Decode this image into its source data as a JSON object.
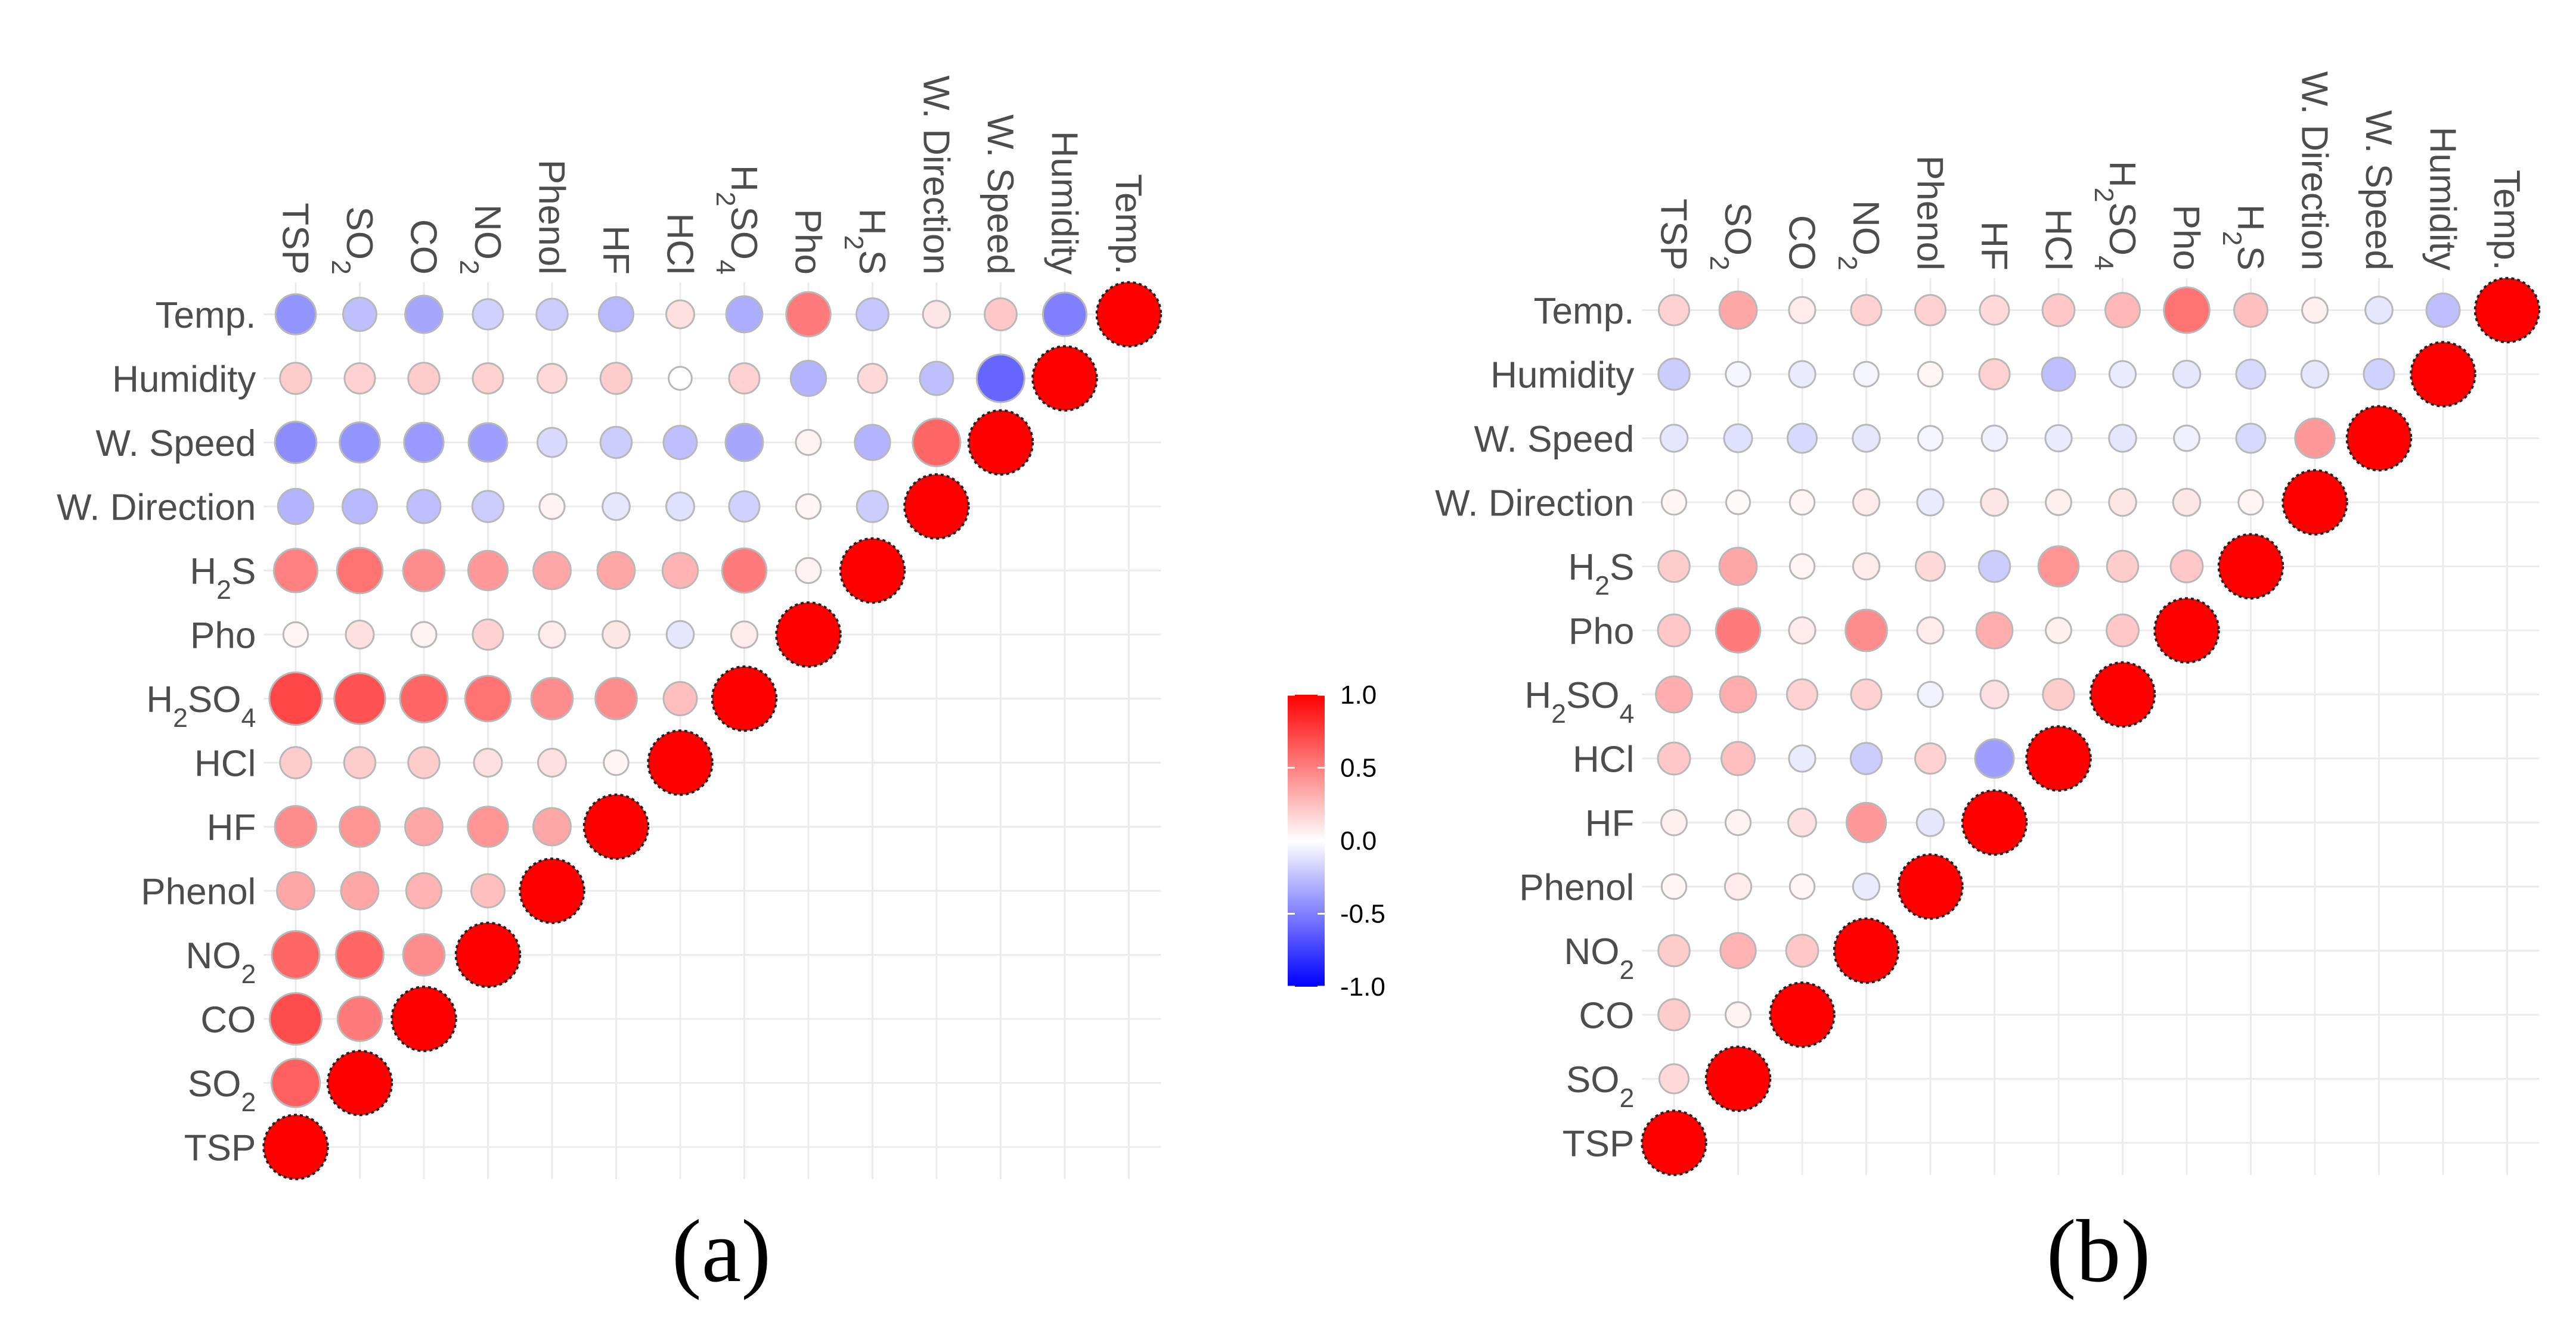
{
  "chart_data": [
    {
      "type": "correlogram",
      "panel_label": "(a)",
      "variables": [
        "TSP",
        "SO2",
        "CO",
        "NO2",
        "Phenol",
        "HF",
        "HCl",
        "H2SO4",
        "Pho",
        "H2S",
        "W. Direction",
        "W. Speed",
        "Humidity",
        "Temp."
      ],
      "variable_labels": [
        {
          "base": "TSP",
          "sub": ""
        },
        {
          "base": "SO",
          "sub": "2"
        },
        {
          "base": "CO",
          "sub": ""
        },
        {
          "base": "NO",
          "sub": "2"
        },
        {
          "base": "Phenol",
          "sub": ""
        },
        {
          "base": "HF",
          "sub": ""
        },
        {
          "base": "HCl",
          "sub": ""
        },
        {
          "base": "H",
          "sub": "2",
          "tail": "SO",
          "sub2": "4"
        },
        {
          "base": "Pho",
          "sub": ""
        },
        {
          "base": "H",
          "sub": "2",
          "tail": "S"
        },
        {
          "base": "W. Direction",
          "sub": ""
        },
        {
          "base": "W. Speed",
          "sub": ""
        },
        {
          "base": "Humidity",
          "sub": ""
        },
        {
          "base": "Temp.",
          "sub": ""
        }
      ],
      "matrix_lower": [
        [
          1.0
        ],
        [
          0.62,
          1.0
        ],
        [
          0.7,
          0.52,
          1.0
        ],
        [
          0.6,
          0.6,
          0.45,
          1.0
        ],
        [
          0.35,
          0.35,
          0.3,
          0.25,
          1.0
        ],
        [
          0.45,
          0.42,
          0.35,
          0.42,
          0.35,
          1.0
        ],
        [
          0.2,
          0.2,
          0.2,
          0.12,
          0.12,
          0.04,
          1.0
        ],
        [
          0.72,
          0.68,
          0.6,
          0.55,
          0.45,
          0.45,
          0.25,
          1.0
        ],
        [
          0.04,
          0.12,
          0.05,
          0.18,
          0.08,
          0.1,
          -0.1,
          0.08,
          1.0
        ],
        [
          0.5,
          0.55,
          0.45,
          0.4,
          0.35,
          0.35,
          0.3,
          0.52,
          0.05,
          1.0
        ],
        [
          -0.3,
          -0.28,
          -0.25,
          -0.2,
          0.05,
          -0.1,
          -0.12,
          -0.18,
          0.04,
          -0.2,
          1.0
        ],
        [
          -0.45,
          -0.42,
          -0.4,
          -0.38,
          -0.15,
          -0.2,
          -0.25,
          -0.35,
          0.05,
          -0.3,
          0.6,
          1.0
        ],
        [
          0.2,
          0.18,
          0.2,
          0.18,
          0.15,
          0.2,
          0.0,
          0.18,
          -0.3,
          0.15,
          -0.25,
          -0.6,
          1.0
        ],
        [
          -0.42,
          -0.25,
          -0.35,
          -0.18,
          -0.2,
          -0.28,
          0.12,
          -0.32,
          0.52,
          -0.22,
          0.1,
          0.22,
          -0.5,
          1.0
        ]
      ]
    },
    {
      "type": "correlogram",
      "panel_label": "(b)",
      "variables": [
        "TSP",
        "SO2",
        "CO",
        "NO2",
        "Phenol",
        "HF",
        "HCl",
        "H2SO4",
        "Pho",
        "H2S",
        "W. Direction",
        "W. Speed",
        "Humidity",
        "Temp."
      ],
      "variable_labels": [
        {
          "base": "TSP",
          "sub": ""
        },
        {
          "base": "SO",
          "sub": "2"
        },
        {
          "base": "CO",
          "sub": ""
        },
        {
          "base": "NO",
          "sub": "2"
        },
        {
          "base": "Phenol",
          "sub": ""
        },
        {
          "base": "HF",
          "sub": ""
        },
        {
          "base": "HCl",
          "sub": ""
        },
        {
          "base": "H",
          "sub": "2",
          "tail": "SO",
          "sub2": "4"
        },
        {
          "base": "Pho",
          "sub": ""
        },
        {
          "base": "H",
          "sub": "2",
          "tail": "S"
        },
        {
          "base": "W. Direction",
          "sub": ""
        },
        {
          "base": "W. Speed",
          "sub": ""
        },
        {
          "base": "Humidity",
          "sub": ""
        },
        {
          "base": "Temp.",
          "sub": ""
        }
      ],
      "matrix_lower": [
        [
          1.0
        ],
        [
          0.15,
          1.0
        ],
        [
          0.2,
          0.05,
          1.0
        ],
        [
          0.2,
          0.3,
          0.22,
          1.0
        ],
        [
          0.04,
          0.08,
          0.04,
          -0.08,
          1.0
        ],
        [
          0.06,
          0.05,
          0.12,
          0.4,
          -0.1,
          1.0
        ],
        [
          0.22,
          0.25,
          -0.08,
          -0.2,
          0.18,
          -0.38,
          1.0
        ],
        [
          0.32,
          0.32,
          0.18,
          0.18,
          -0.05,
          0.12,
          0.2,
          1.0
        ],
        [
          0.22,
          0.52,
          0.08,
          0.45,
          0.08,
          0.32,
          0.06,
          0.22,
          1.0
        ],
        [
          0.2,
          0.35,
          0.04,
          0.08,
          0.15,
          -0.2,
          0.42,
          0.2,
          0.22,
          1.0
        ],
        [
          0.04,
          0.02,
          0.04,
          0.08,
          -0.08,
          0.1,
          0.06,
          0.1,
          0.1,
          0.04,
          1.0
        ],
        [
          -0.1,
          -0.12,
          -0.15,
          -0.1,
          -0.04,
          -0.06,
          -0.08,
          -0.1,
          -0.06,
          -0.15,
          0.4,
          1.0
        ],
        [
          -0.2,
          -0.04,
          -0.08,
          -0.04,
          0.04,
          0.18,
          -0.25,
          -0.08,
          -0.1,
          -0.15,
          -0.1,
          -0.18,
          1.0
        ],
        [
          0.18,
          0.35,
          0.08,
          0.18,
          0.18,
          0.15,
          0.22,
          0.28,
          0.55,
          0.25,
          0.06,
          -0.1,
          -0.25,
          1.0
        ]
      ]
    }
  ],
  "colorbar": {
    "ticks": [
      "1.0",
      "0.5",
      "0.0",
      "-0.5",
      "-1.0"
    ],
    "tick_values": [
      1.0,
      0.5,
      0.0,
      -0.5,
      -1.0
    ],
    "range": [
      -1.0,
      1.0
    ],
    "colors": {
      "low": "#0000ff",
      "mid": "#ffffff",
      "high": "#ff0000"
    }
  },
  "style": {
    "grid_color": "#ebebeb",
    "circle_stroke": "#b8b8b8",
    "diag_stroke": "#222222"
  }
}
